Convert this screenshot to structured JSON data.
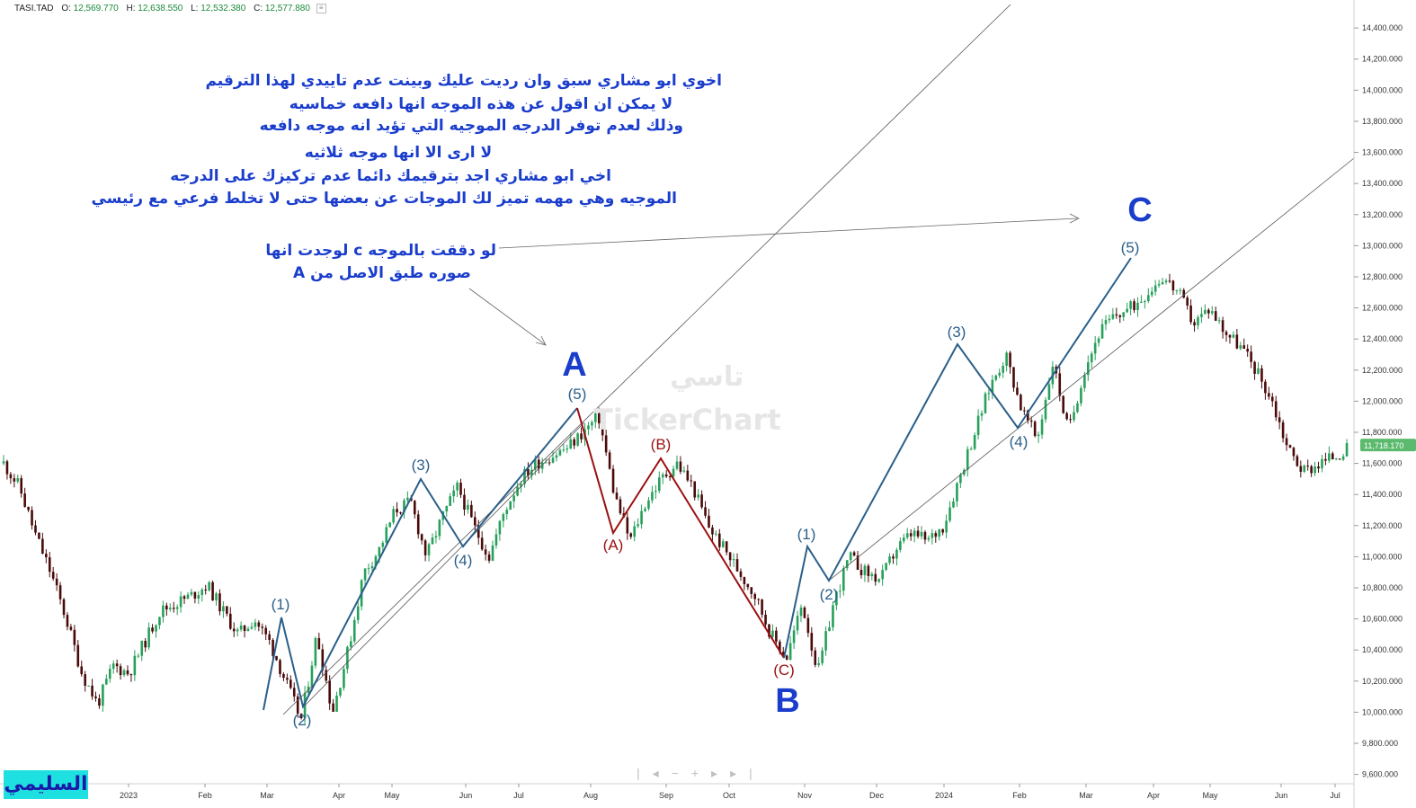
{
  "header": {
    "symbol": "TASI.TAD",
    "open_label": "O:",
    "open": "12,569.770",
    "high_label": "H:",
    "high": "12,638.550",
    "low_label": "L:",
    "low": "12,532.380",
    "close_label": "C:",
    "close": "12,577.880"
  },
  "chart_data": {
    "type": "candlestick",
    "y_axis_ticks": [
      "14,400.000",
      "14,200.000",
      "14,000.000",
      "13,800.000",
      "13,600.000",
      "13,400.000",
      "13,200.000",
      "13,000.000",
      "12,800.000",
      "12,600.000",
      "12,400.000",
      "12,200.000",
      "12,000.000",
      "11,800.000",
      "11,600.000",
      "11,400.000",
      "11,200.000",
      "11,000.000",
      "10,800.000",
      "10,600.000",
      "10,400.000",
      "10,200.000",
      "10,000.000",
      "9,800.000",
      "9,600.000"
    ],
    "y_tick_values": [
      14400,
      14200,
      14000,
      13800,
      13600,
      13400,
      13200,
      13000,
      12800,
      12600,
      12400,
      12200,
      12000,
      11800,
      11600,
      11400,
      11200,
      11000,
      10800,
      10600,
      10400,
      10200,
      10000,
      9800,
      9600
    ],
    "ylim": [
      9540,
      14580
    ],
    "x_axis_ticks": [
      "2023",
      "Feb",
      "Mar",
      "Apr",
      "May",
      "Jun",
      "Jul",
      "Aug",
      "Sep",
      "Oct",
      "Nov",
      "Dec",
      "2024",
      "Feb",
      "Mar",
      "Apr",
      "May",
      "Jun",
      "Jul"
    ],
    "last_price": "11,718.170",
    "last_price_value": 11718.17,
    "price_path": [
      11600,
      11450,
      11150,
      10900,
      10600,
      10250,
      10050,
      10300,
      10250,
      10450,
      10650,
      10700,
      10750,
      10820,
      10650,
      10500,
      10600,
      10450,
      10200,
      9950,
      10500,
      10000,
      10400,
      10900,
      11050,
      11300,
      11350,
      11000,
      11250,
      11450,
      11200,
      11000,
      11300,
      11500,
      11600,
      11650,
      11700,
      11800,
      11900,
      11400,
      11100,
      11350,
      11500,
      11600,
      11450,
      11200,
      11050,
      10900,
      10750,
      10500,
      10350,
      10700,
      10250,
      10700,
      11000,
      10900,
      10850,
      11050,
      11150,
      11100,
      11200,
      11500,
      11800,
      12100,
      12300,
      11950,
      11750,
      12250,
      11800,
      12200,
      12450,
      12550,
      12600,
      12700,
      12800,
      12700,
      12500,
      12600,
      12450,
      12350,
      12200,
      12000,
      11700,
      11550,
      11600,
      11650,
      11700
    ]
  },
  "waves": {
    "labels_blue": [
      "(1)",
      "(2)",
      "(3)",
      "(4)",
      "(5)",
      "(1)",
      "(2)",
      "(3)",
      "(4)",
      "(5)"
    ],
    "labels_red": [
      "(A)",
      "(B)",
      "(C)"
    ],
    "big_labels": [
      "A",
      "B",
      "C"
    ]
  },
  "notes": {
    "block1": [
      "اخوي ابو مشاري سبق وان رديت عليك وبينت عدم تاييدي لهذا الترقيم",
      "لا يمكن ان اقول عن هذه الموجه انها دافعه خماسيه",
      "وذلك لعدم توفر الدرجه الموجيه التي تؤيد انه موجه دافعه"
    ],
    "block2": [
      "لا ارى الا انها موجه ثلاثيه",
      "اخي ابو مشاري اجد بترقيمك دائما عدم تركيزك على الدرجه",
      "الموجيه وهي مهمه تميز لك الموجات عن بعضها حتى لا تخلط فرعي مع رئيسي"
    ],
    "block3": [
      "لو دققت بالموجه c لوجدت انها",
      "صوره طبق الاصل من A"
    ]
  },
  "watermark": {
    "arabic": "تاسي",
    "brand": "TickerChart"
  },
  "author": "السليمي",
  "colors": {
    "up": "#26a05a",
    "down": "#4a0a0a",
    "impulse": "#2a5f8a",
    "corrective": "#9a1010",
    "note": "#1a3dcc",
    "label_big": "#1a3dcc",
    "price_badge": "#5cba6e"
  }
}
